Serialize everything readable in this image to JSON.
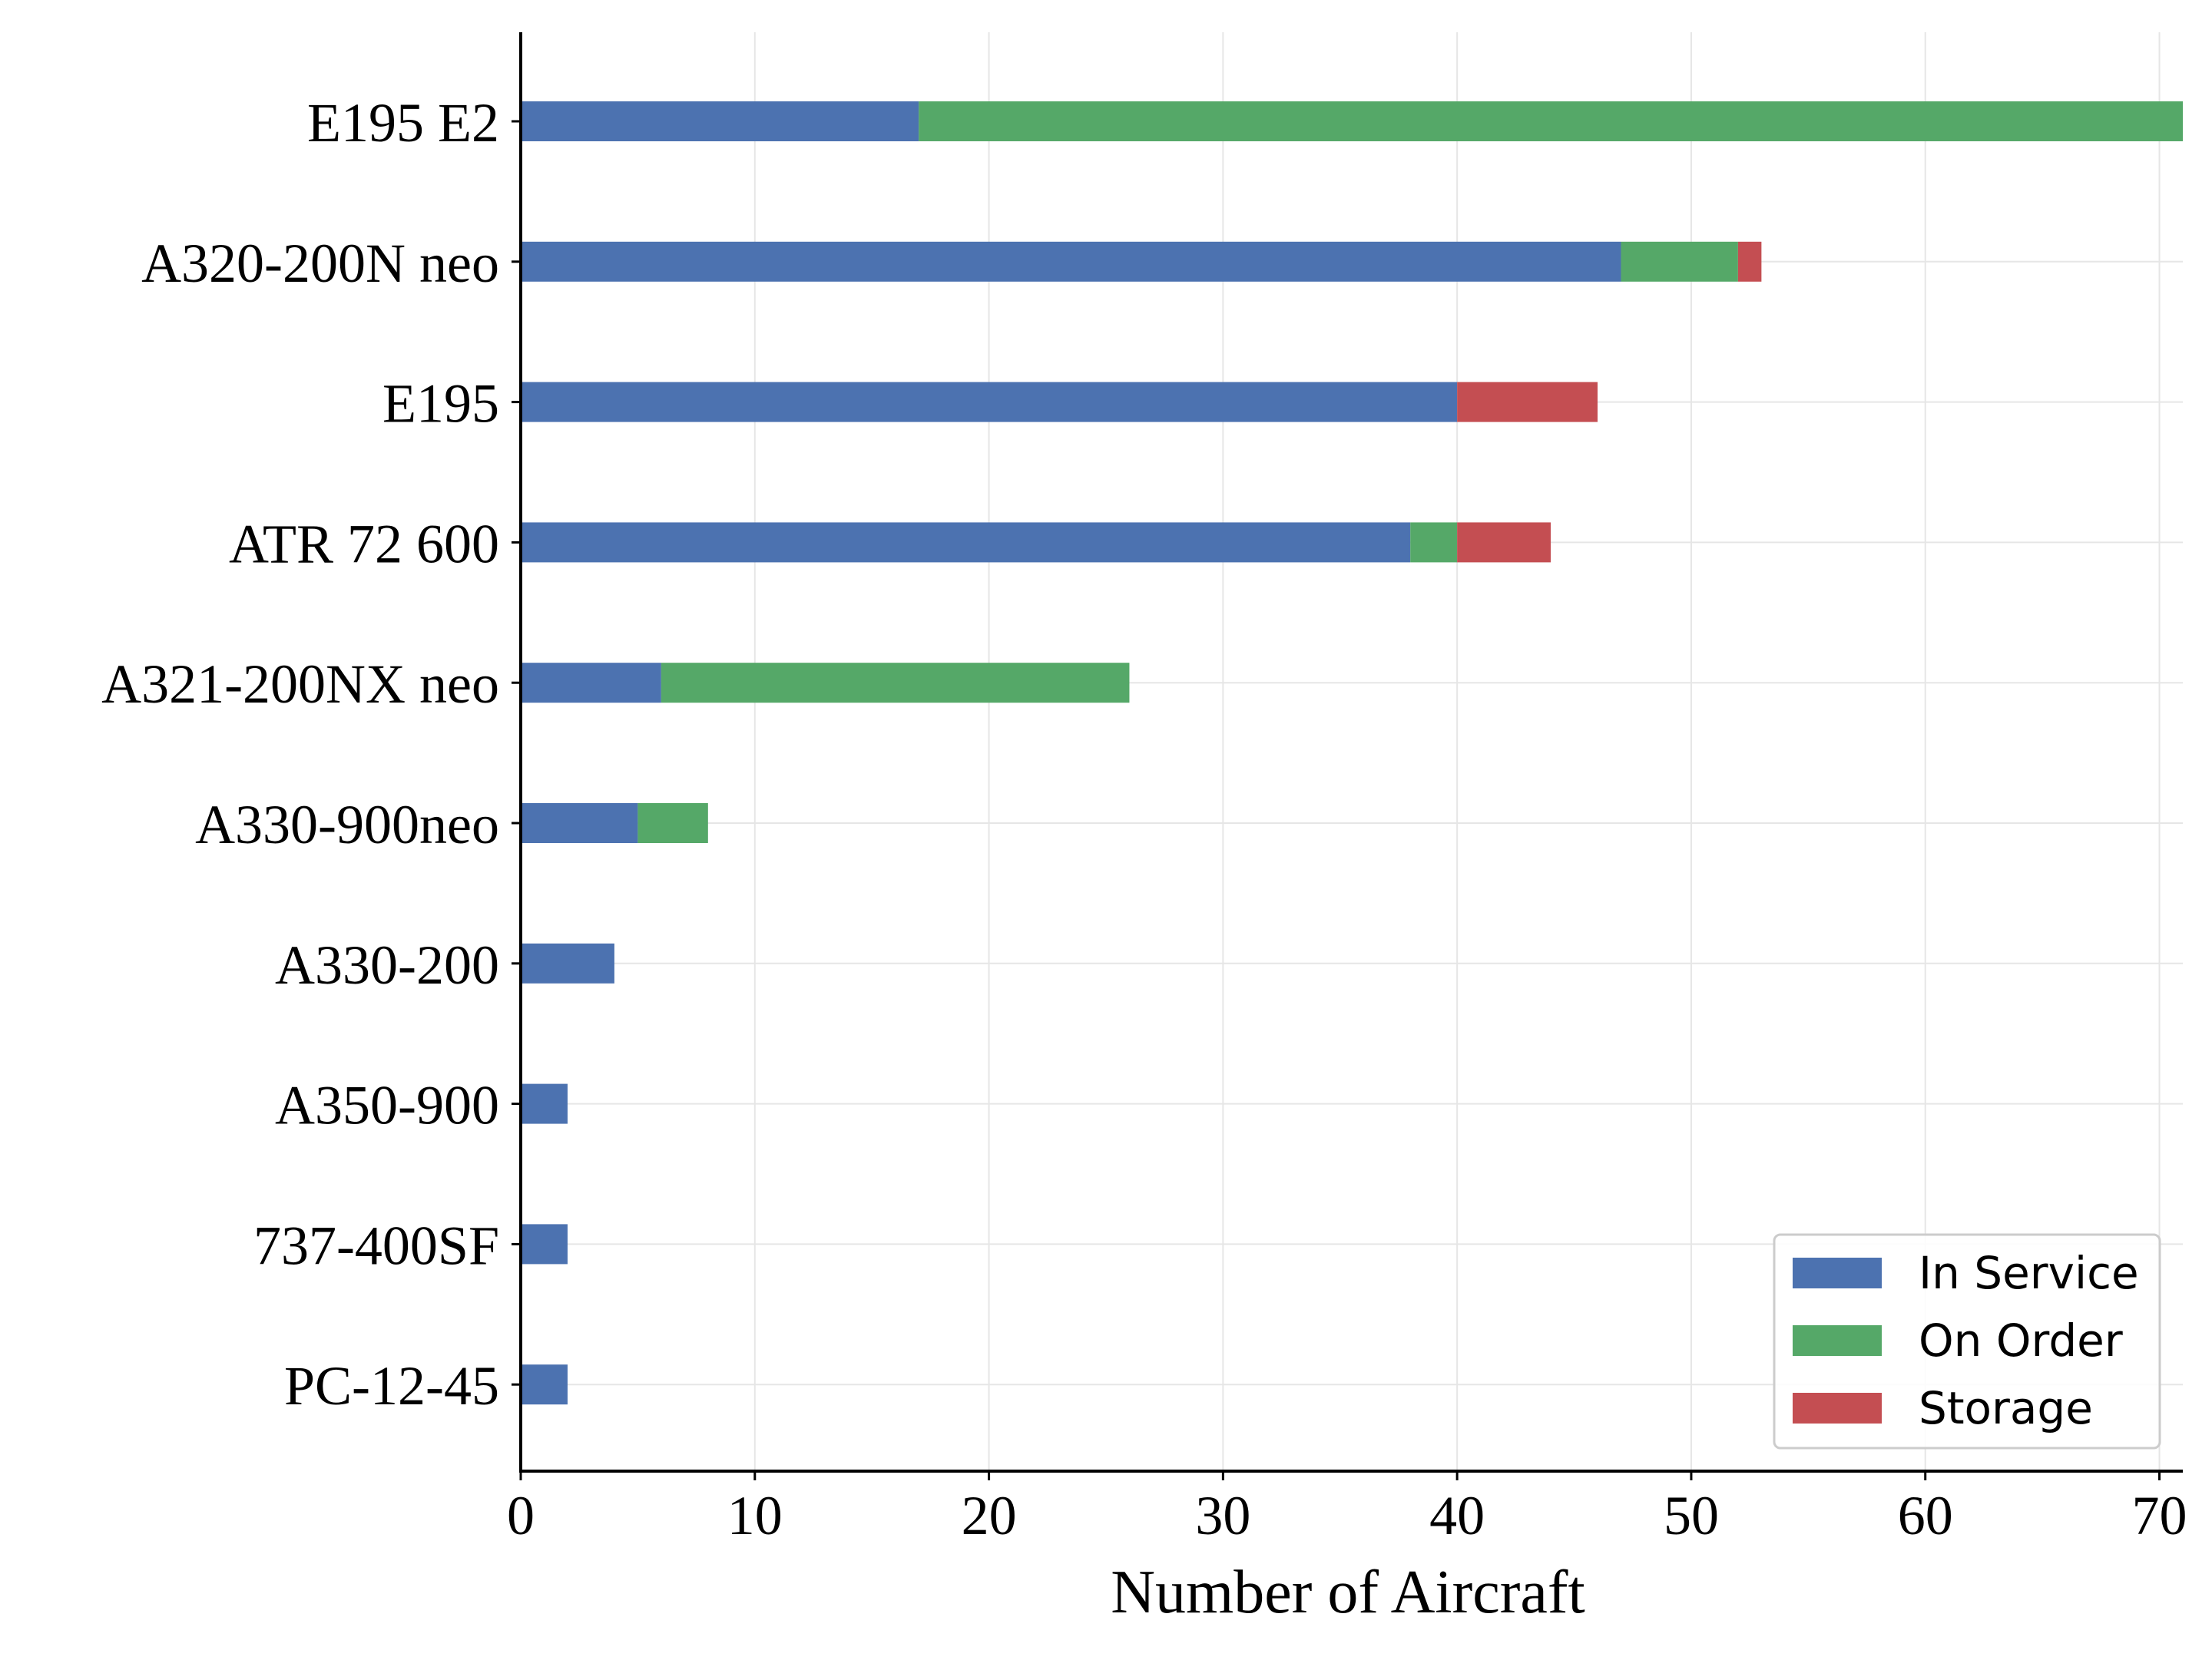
{
  "chart_data": {
    "type": "bar",
    "orientation": "horizontal",
    "stacked": true,
    "title": "",
    "xlabel": "Number of Aircraft",
    "ylabel": "",
    "xlim": [
      0,
      71
    ],
    "xticks": [
      0,
      10,
      20,
      30,
      40,
      50,
      60,
      70
    ],
    "grid": true,
    "legend_position": "bottom-right",
    "categories": [
      "E195 E2",
      "A320-200N neo",
      "E195",
      "ATR 72 600",
      "A321-200NX neo",
      "A330-900neo",
      "A330-200",
      "A350-900",
      "737-400SF",
      "PC-12-45"
    ],
    "series": [
      {
        "name": "In Service",
        "color": "#4c72b0",
        "values": [
          17,
          47,
          40,
          38,
          6,
          5,
          4,
          2,
          2,
          2
        ]
      },
      {
        "name": "On Order",
        "color": "#55a868",
        "values": [
          54,
          5,
          0,
          2,
          20,
          3,
          0,
          0,
          0,
          0
        ]
      },
      {
        "name": "Storage",
        "color": "#c44e52",
        "values": [
          0,
          1,
          6,
          4,
          0,
          0,
          0,
          0,
          0,
          0
        ]
      }
    ]
  }
}
